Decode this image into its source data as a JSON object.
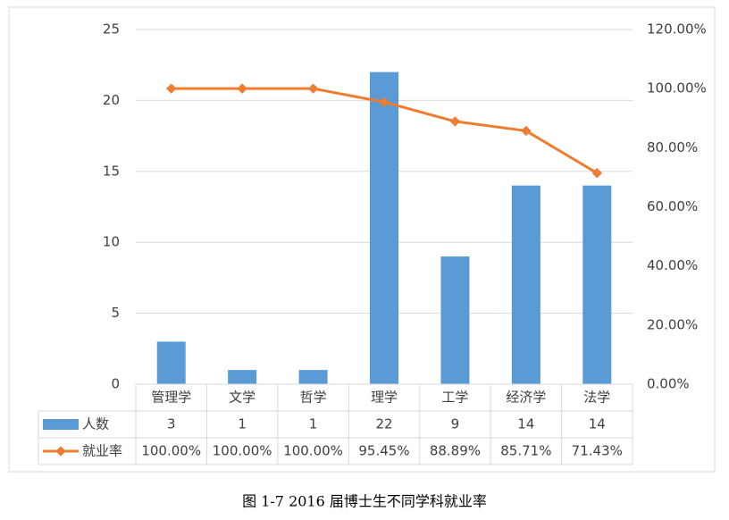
{
  "chart_data": {
    "type": "bar",
    "categories": [
      "管理学",
      "文学",
      "哲学",
      "理学",
      "工学",
      "经济学",
      "法学"
    ],
    "series": [
      {
        "name": "人数",
        "color": "#5b9bd5",
        "values": [
          3,
          1,
          1,
          22,
          9,
          14,
          14
        ]
      },
      {
        "name": "就业率",
        "color": "#ed7d31",
        "type": "line",
        "axis": "y2",
        "values": [
          100,
          100,
          100,
          95.45,
          88.89,
          85.71,
          71.43
        ],
        "value_labels": [
          "100.00%",
          "100.00%",
          "100.00%",
          "95.45%",
          "88.89%",
          "85.71%",
          "71.43%"
        ]
      }
    ],
    "ylim": [
      0,
      25
    ],
    "yticks": [
      0,
      5,
      10,
      15,
      20,
      25
    ],
    "y2lim": [
      0,
      120
    ],
    "y2ticks": [
      {
        "value": 0,
        "label": "0.00%"
      },
      {
        "value": 20,
        "label": "20.00%"
      },
      {
        "value": 40,
        "label": "40.00%"
      },
      {
        "value": 60,
        "label": "60.00%"
      },
      {
        "value": 80,
        "label": "80.00%"
      },
      {
        "value": 100,
        "label": "100.00%"
      },
      {
        "value": 120,
        "label": "120.00%"
      }
    ],
    "grid": true,
    "caption": "图 1-7 2016 届博士生不同学科就业率"
  }
}
